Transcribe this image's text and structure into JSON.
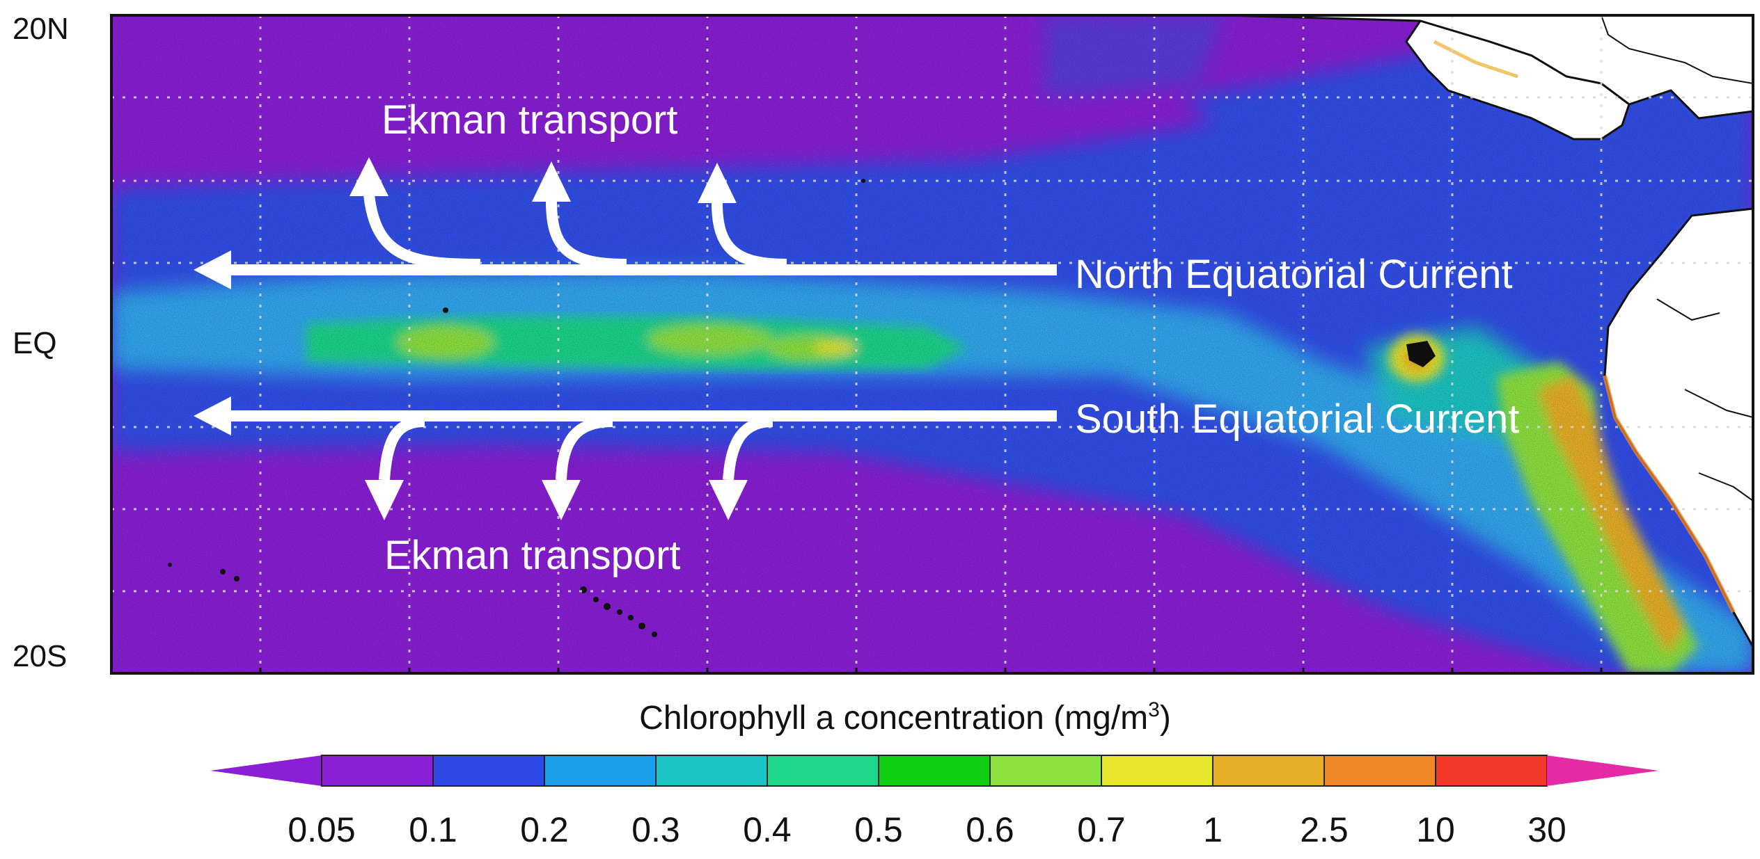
{
  "map": {
    "lat_labels": {
      "north": "20N",
      "equator": "EQ",
      "south": "20S"
    },
    "grid": true
  },
  "annotations": {
    "north_current": "North Equatorial Current",
    "south_current": "South Equatorial Current",
    "ekman_north": "Ekman transport",
    "ekman_south": "Ekman transport"
  },
  "colorbar": {
    "title_main": "Chlorophyll a concentration (mg/m",
    "title_sup": "3",
    "title_close": ")",
    "ticks": [
      "0.05",
      "0.1",
      "0.2",
      "0.3",
      "0.4",
      "0.5",
      "0.6",
      "0.7",
      "1",
      "2.5",
      "10",
      "30"
    ],
    "colors": [
      "#8a1fd6",
      "#2d49e6",
      "#1aa0ea",
      "#1ac4c4",
      "#1cd68a",
      "#10cf12",
      "#8ee240",
      "#e8e62a",
      "#e8ae28",
      "#f0882a",
      "#f23a2a",
      "#e52aa6"
    ]
  },
  "colors": {
    "ocean_low": "#8a1fd6",
    "ocean_mid": "#3250ea",
    "ocean_high": "#32a8f0",
    "land": "#ffffff",
    "arrow": "#ffffff"
  }
}
